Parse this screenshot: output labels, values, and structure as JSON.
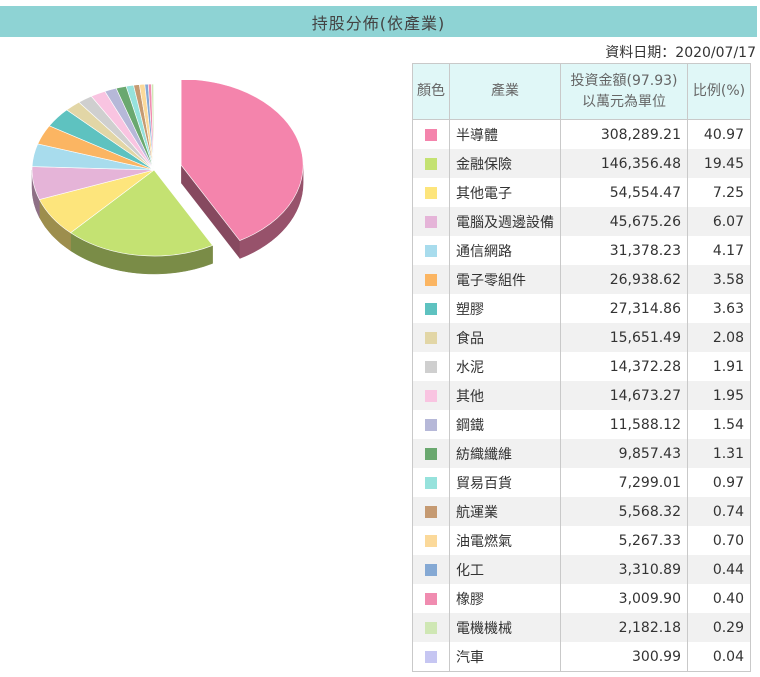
{
  "header": {
    "title": "持股分佈(依產業)",
    "date_label": "資料日期：2020/07/17"
  },
  "table": {
    "col_color": "顏色",
    "col_industry": "產業",
    "col_amount_line1": "投資金額(97.93)",
    "col_amount_line2": "以萬元為單位",
    "col_pct": "比例(%)"
  },
  "chart_data": {
    "type": "pie",
    "categories": [
      "半導體",
      "金融保險",
      "其他電子",
      "電腦及週邊設備",
      "通信網路",
      "電子零組件",
      "塑膠",
      "食品",
      "水泥",
      "其他",
      "鋼鐵",
      "紡織纖維",
      "貿易百貨",
      "航運業",
      "油電燃氣",
      "化工",
      "橡膠",
      "電機機械",
      "汽車"
    ],
    "amounts": [
      "308,289.21",
      "146,356.48",
      "54,554.47",
      "45,675.26",
      "31,378.23",
      "26,938.62",
      "27,314.86",
      "15,651.49",
      "14,372.28",
      "14,673.27",
      "11,588.12",
      "9,857.43",
      "7,299.01",
      "5,568.32",
      "5,267.33",
      "3,310.89",
      "3,009.90",
      "2,182.18",
      "300.99"
    ],
    "percents": [
      "40.97",
      "19.45",
      "7.25",
      "6.07",
      "4.17",
      "3.58",
      "3.63",
      "2.08",
      "1.91",
      "1.95",
      "1.54",
      "1.31",
      "0.97",
      "0.74",
      "0.70",
      "0.44",
      "0.40",
      "0.29",
      "0.04"
    ],
    "values": [
      40.97,
      19.45,
      7.25,
      6.07,
      4.17,
      3.58,
      3.63,
      2.08,
      1.91,
      1.95,
      1.54,
      1.31,
      0.97,
      0.74,
      0.7,
      0.44,
      0.4,
      0.29,
      0.04
    ],
    "colors": [
      "#f484ac",
      "#c4e272",
      "#fde57c",
      "#e5b4d8",
      "#a8dced",
      "#fbb562",
      "#5ec2c0",
      "#e2d6a6",
      "#cfcfcf",
      "#f9c4e1",
      "#b6b8d8",
      "#6aa86f",
      "#96e2dc",
      "#c59a72",
      "#fbd99a",
      "#85a9d4",
      "#f08cb0",
      "#cfe7b4",
      "#c6c6f2"
    ],
    "exploded": "半導體"
  }
}
